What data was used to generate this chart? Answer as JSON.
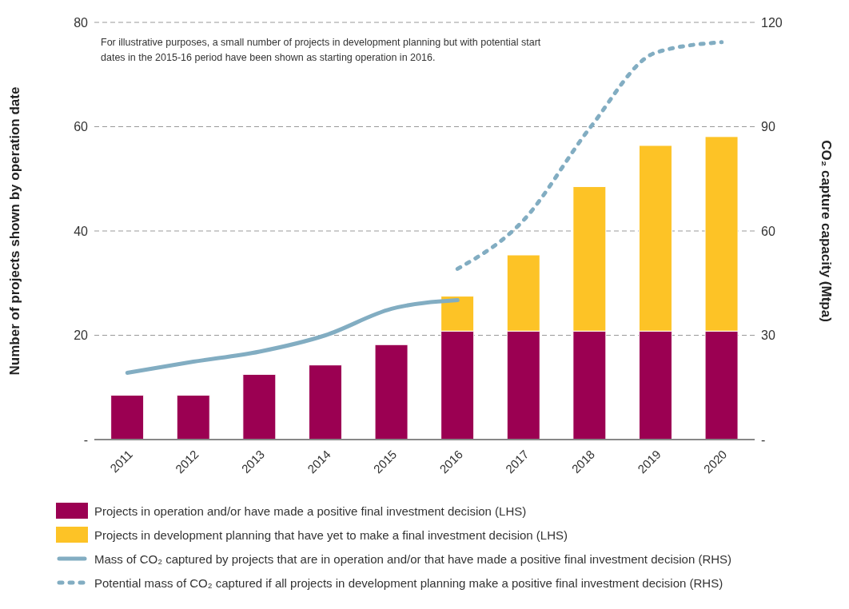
{
  "chart_data": {
    "type": "bar",
    "stacked": true,
    "ylabel": "Number of projects shown by operation date",
    "y2label": "CO₂ capture capacity (Mtpa)",
    "annotations": [
      "For illustrative purposes, a small number of projects in development planning but with potential start dates in the 2015-16 period have been shown as starting operation in 2016."
    ],
    "categories": [
      "2011",
      "2012",
      "2013",
      "2014",
      "2015",
      "2016",
      "2017",
      "2018",
      "2019",
      "2020"
    ],
    "series": [
      {
        "name": "Projects in operation and/or have made a positive final investment decision (LHS)",
        "color": "#9b0052",
        "values": [
          8.5,
          8.5,
          12.5,
          14.3,
          18.2,
          20.8,
          20.8,
          20.8,
          20.8,
          20.8
        ]
      },
      {
        "name": "Projects in development planning that have yet to make a final investment decision (LHS)",
        "color": "#fdc326",
        "values": [
          null,
          null,
          null,
          null,
          null,
          6.7,
          14.6,
          27.7,
          35.6,
          37.3
        ]
      },
      {
        "type": "line",
        "axis": "y2",
        "line_style": "solid",
        "name": "Mass of CO₂ captured by projects that are in operation and/or that have made a positive final investment decision (RHS)",
        "color": "#82adc2",
        "values": [
          19.2,
          22.4,
          25.3,
          30,
          37.6,
          40.1,
          null,
          null,
          null,
          null
        ]
      },
      {
        "type": "line",
        "axis": "y2",
        "line_style": "dotted",
        "name": "Potential mass of CO₂ captured if all projects in development planning make a positive final investment decision (RHS)",
        "color": "#82adc2",
        "values": [
          null,
          null,
          null,
          null,
          null,
          49.1,
          63.1,
          89.5,
          111.3,
          114.3
        ]
      }
    ],
    "ylim": [
      0,
      80
    ],
    "yticks": [
      {
        "value": 0,
        "label": "-"
      },
      20,
      40,
      60,
      80
    ],
    "y2lim": [
      0,
      120
    ],
    "y2ticks": [
      {
        "value": 0,
        "label": "-"
      },
      30,
      60,
      90,
      120
    ],
    "grid": "y",
    "legend": "bottom",
    "marker": "none"
  }
}
